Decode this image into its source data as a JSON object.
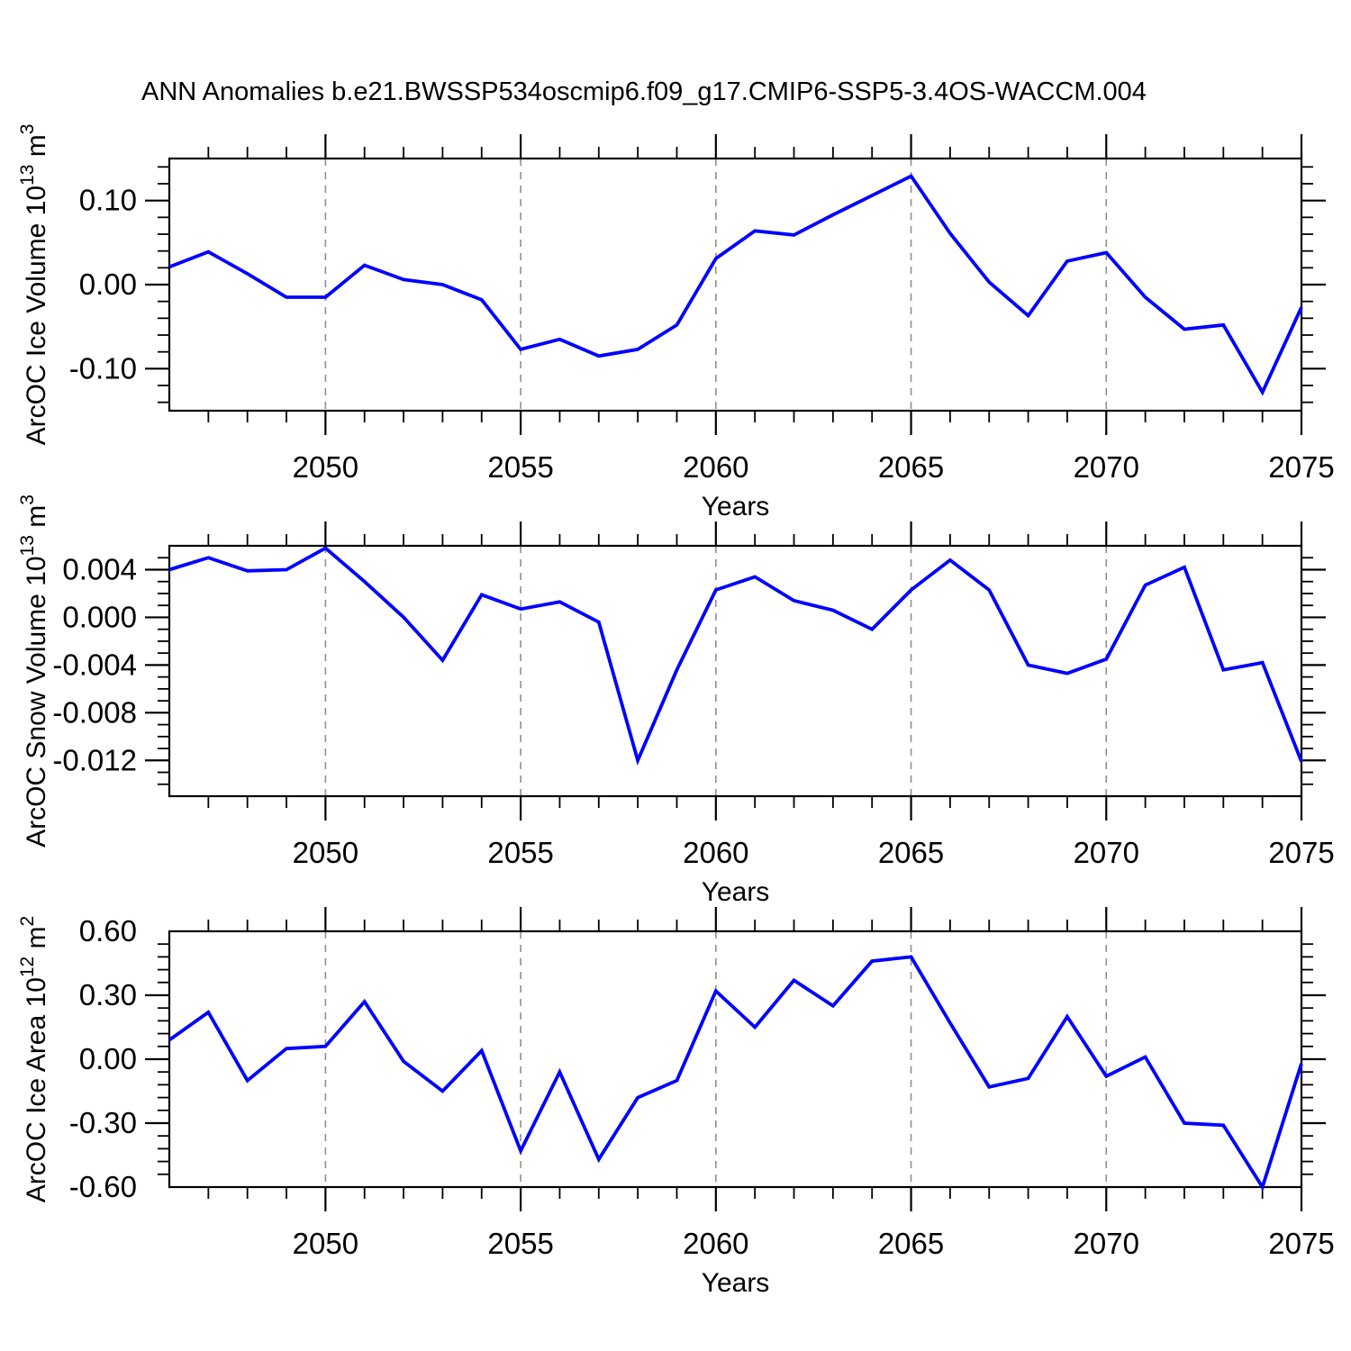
{
  "title": "ANN Anomalies b.e21.BWSSP534oscmip6.f09_g17.CMIP6-SSP5-3.4OS-WACCM.004",
  "colors": {
    "series_line": "#0000ff",
    "gridline": "#8f8f8f",
    "axis": "#000000",
    "text": "#000000",
    "background": "#ffffff"
  },
  "chart_data": [
    {
      "type": "line",
      "ylabel": "ArcOC Ice Volume 10^13 m^3",
      "ylabel_parts": [
        [
          "ArcOC Ice Volume 10",
          false
        ],
        [
          "13",
          true
        ],
        [
          " m",
          false
        ],
        [
          "3",
          true
        ]
      ],
      "xlabel": "Years",
      "xlim": [
        2046,
        2075
      ],
      "ylim": [
        -0.15,
        0.15
      ],
      "x": [
        2046,
        2047,
        2048,
        2049,
        2050,
        2051,
        2052,
        2053,
        2054,
        2055,
        2056,
        2057,
        2058,
        2059,
        2060,
        2061,
        2062,
        2063,
        2064,
        2065,
        2066,
        2067,
        2068,
        2069,
        2070,
        2071,
        2072,
        2073,
        2074,
        2075
      ],
      "values": [
        0.021,
        0.039,
        0.013,
        -0.015,
        -0.015,
        0.023,
        0.006,
        0.0,
        -0.018,
        -0.077,
        -0.065,
        -0.085,
        -0.077,
        -0.048,
        0.031,
        0.064,
        0.059,
        0.083,
        0.106,
        0.129,
        0.061,
        0.003,
        -0.037,
        0.028,
        0.038,
        -0.015,
        -0.053,
        -0.048,
        -0.128,
        -0.027
      ],
      "yticks": [
        {
          "v": 0.1,
          "label": "0.10"
        },
        {
          "v": 0.0,
          "label": "0.00"
        },
        {
          "v": -0.1,
          "label": "-0.10"
        }
      ],
      "ytick_minor_step": 0.02,
      "xticks": [
        {
          "v": 2050,
          "label": "2050"
        },
        {
          "v": 2055,
          "label": "2055"
        },
        {
          "v": 2060,
          "label": "2060"
        },
        {
          "v": 2065,
          "label": "2065"
        },
        {
          "v": 2070,
          "label": "2070"
        },
        {
          "v": 2075,
          "label": "2075"
        }
      ],
      "xtick_minor_step": 1,
      "gridlines_x": [
        2050,
        2055,
        2060,
        2065,
        2070
      ],
      "grid_style": "dashed-vertical"
    },
    {
      "type": "line",
      "ylabel": "ArcOC Snow Volume 10^13 m^3",
      "ylabel_parts": [
        [
          "ArcOC Snow Volume 10",
          false
        ],
        [
          "13",
          true
        ],
        [
          " m",
          false
        ],
        [
          "3",
          true
        ]
      ],
      "xlabel": "Years",
      "xlim": [
        2046,
        2075
      ],
      "ylim": [
        -0.015,
        0.006
      ],
      "x": [
        2046,
        2047,
        2048,
        2049,
        2050,
        2051,
        2052,
        2053,
        2054,
        2055,
        2056,
        2057,
        2058,
        2059,
        2060,
        2061,
        2062,
        2063,
        2064,
        2065,
        2066,
        2067,
        2068,
        2069,
        2070,
        2071,
        2072,
        2073,
        2074,
        2075
      ],
      "values": [
        0.004,
        0.005,
        0.0039,
        0.004,
        0.0058,
        0.003,
        0.0,
        -0.0036,
        0.0019,
        0.0007,
        0.0013,
        -0.0004,
        -0.012,
        -0.0044,
        0.0023,
        0.0034,
        0.0014,
        0.0006,
        -0.001,
        0.0023,
        0.0048,
        0.0023,
        -0.004,
        -0.0047,
        -0.0035,
        0.0027,
        0.0042,
        -0.0044,
        -0.0038,
        -0.0121
      ],
      "yticks": [
        {
          "v": 0.004,
          "label": "0.004"
        },
        {
          "v": 0.0,
          "label": "0.000"
        },
        {
          "v": -0.004,
          "label": "-0.004"
        },
        {
          "v": -0.008,
          "label": "-0.008"
        },
        {
          "v": -0.012,
          "label": "-0.012"
        }
      ],
      "ytick_minor_step": 0.001,
      "xticks": [
        {
          "v": 2050,
          "label": "2050"
        },
        {
          "v": 2055,
          "label": "2055"
        },
        {
          "v": 2060,
          "label": "2060"
        },
        {
          "v": 2065,
          "label": "2065"
        },
        {
          "v": 2070,
          "label": "2070"
        },
        {
          "v": 2075,
          "label": "2075"
        }
      ],
      "xtick_minor_step": 1,
      "gridlines_x": [
        2050,
        2055,
        2060,
        2065,
        2070
      ],
      "grid_style": "dashed-vertical"
    },
    {
      "type": "line",
      "ylabel": "ArcOC Ice Area 10^12 m^2",
      "ylabel_parts": [
        [
          "ArcOC Ice Area 10",
          false
        ],
        [
          "12",
          true
        ],
        [
          " m",
          false
        ],
        [
          "2",
          true
        ]
      ],
      "xlabel": "Years",
      "xlim": [
        2046,
        2075
      ],
      "ylim": [
        -0.6,
        0.6
      ],
      "x": [
        2046,
        2047,
        2048,
        2049,
        2050,
        2051,
        2052,
        2053,
        2054,
        2055,
        2056,
        2057,
        2058,
        2059,
        2060,
        2061,
        2062,
        2063,
        2064,
        2065,
        2066,
        2067,
        2068,
        2069,
        2070,
        2071,
        2072,
        2073,
        2074,
        2075
      ],
      "values": [
        0.09,
        0.22,
        -0.1,
        0.05,
        0.06,
        0.27,
        -0.01,
        -0.15,
        0.04,
        -0.43,
        -0.06,
        -0.47,
        -0.18,
        -0.1,
        0.32,
        0.15,
        0.37,
        0.25,
        0.46,
        0.48,
        0.17,
        -0.13,
        -0.09,
        0.2,
        -0.08,
        0.01,
        -0.3,
        -0.31,
        -0.6,
        -0.02
      ],
      "yticks": [
        {
          "v": 0.6,
          "label": "0.60"
        },
        {
          "v": 0.3,
          "label": "0.30"
        },
        {
          "v": 0.0,
          "label": "0.00"
        },
        {
          "v": -0.3,
          "label": "-0.30"
        },
        {
          "v": -0.6,
          "label": "-0.60"
        }
      ],
      "ytick_minor_step": 0.06,
      "xticks": [
        {
          "v": 2050,
          "label": "2050"
        },
        {
          "v": 2055,
          "label": "2055"
        },
        {
          "v": 2060,
          "label": "2060"
        },
        {
          "v": 2065,
          "label": "2065"
        },
        {
          "v": 2070,
          "label": "2070"
        },
        {
          "v": 2075,
          "label": "2075"
        }
      ],
      "xtick_minor_step": 1,
      "gridlines_x": [
        2050,
        2055,
        2060,
        2065,
        2070
      ],
      "grid_style": "dashed-vertical"
    }
  ]
}
